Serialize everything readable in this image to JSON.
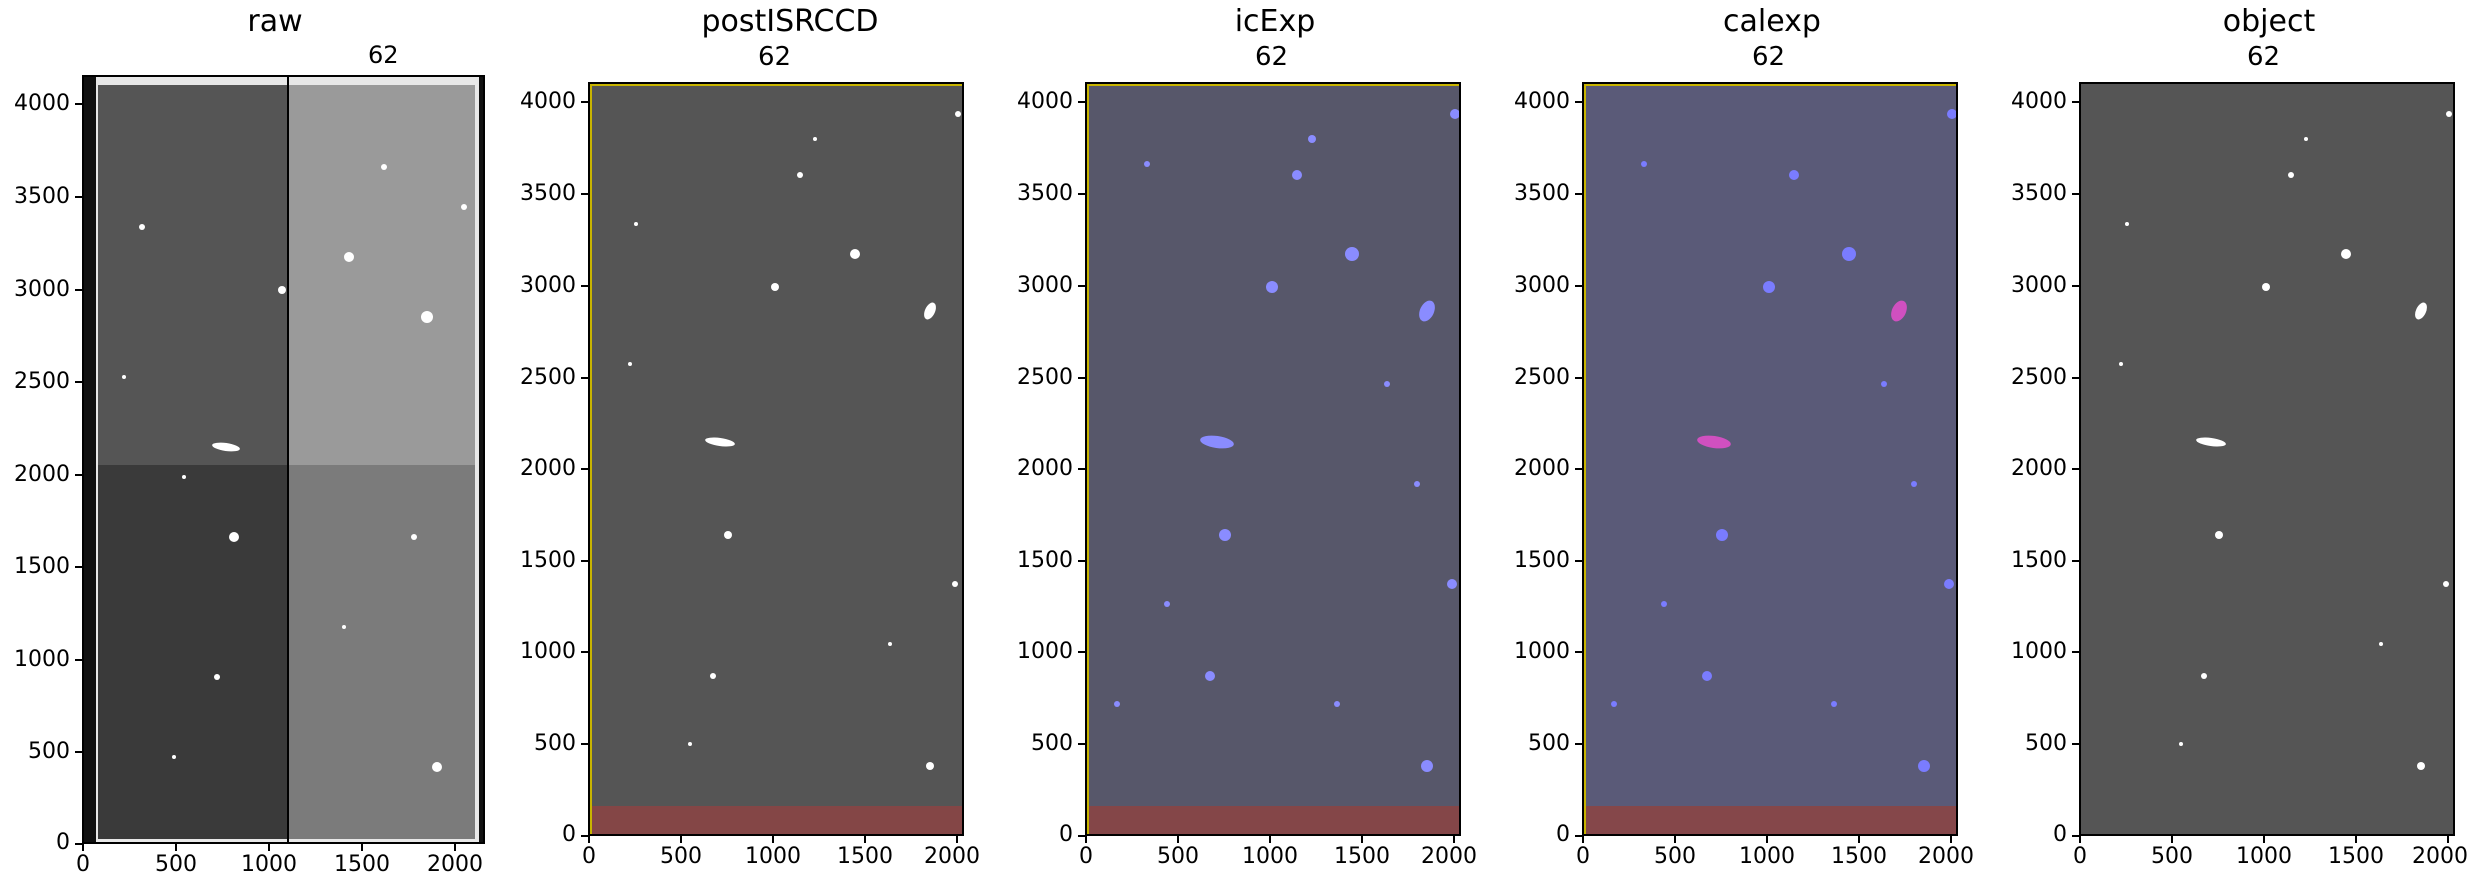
{
  "figure": {
    "panels": [
      {
        "title": "raw",
        "subtitle": "62",
        "kind": "raw",
        "yticks": [
          "0",
          "500",
          "1000",
          "1500",
          "2000",
          "2500",
          "3000",
          "3500",
          "4000"
        ],
        "xticks": [
          "0",
          "500",
          "1000",
          "1500",
          "2000"
        ]
      },
      {
        "title": "postISRCCD",
        "subtitle": "62",
        "kind": "postisr",
        "yticks": [
          "0",
          "500",
          "1000",
          "1500",
          "2000",
          "2500",
          "3000",
          "3500",
          "4000"
        ],
        "xticks": [
          "0",
          "500",
          "1000",
          "1500",
          "2000"
        ]
      },
      {
        "title": "icExp",
        "subtitle": "62",
        "kind": "icexp",
        "yticks": [
          "0",
          "500",
          "1000",
          "1500",
          "2000",
          "2500",
          "3000",
          "3500",
          "4000"
        ],
        "xticks": [
          "0",
          "500",
          "1000",
          "1500",
          "2000"
        ]
      },
      {
        "title": "calexp",
        "subtitle": "62",
        "kind": "calexp",
        "yticks": [
          "0",
          "500",
          "1000",
          "1500",
          "2000",
          "2500",
          "3000",
          "3500",
          "4000"
        ],
        "xticks": [
          "0",
          "500",
          "1000",
          "1500",
          "2000"
        ]
      },
      {
        "title": "object",
        "subtitle": "62",
        "kind": "object",
        "yticks": [
          "0",
          "500",
          "1000",
          "1500",
          "2000",
          "2500",
          "3000",
          "3500",
          "4000"
        ],
        "xticks": [
          "0",
          "500",
          "1000",
          "1500",
          "2000"
        ]
      }
    ],
    "colors": {
      "background_noise": "#5a5a5a",
      "mask_blue": "#5a5cff",
      "mask_red": "#b03a3a",
      "mask_yellow": "#c8b400",
      "mask_magenta": "#d050c0"
    }
  }
}
